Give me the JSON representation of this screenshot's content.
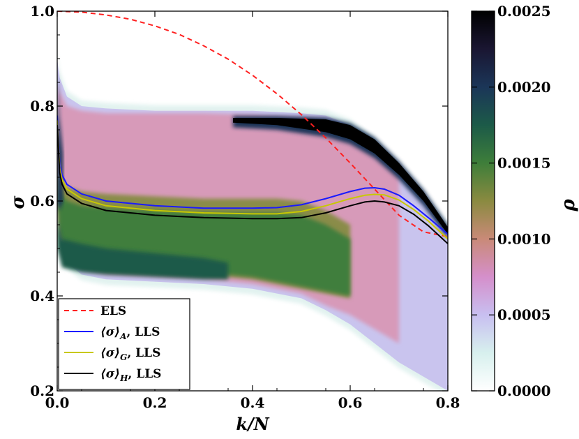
{
  "chart_data": {
    "type": "line",
    "title": "",
    "xlabel": "k/N",
    "ylabel": "σ",
    "xlim": [
      0.0,
      0.8
    ],
    "ylim": [
      0.2,
      1.0
    ],
    "xticks": [
      0.0,
      0.2,
      0.4,
      0.6,
      0.8
    ],
    "xtick_labels": [
      "0.0",
      "0.2",
      "0.4",
      "0.6",
      "0.8"
    ],
    "yticks": [
      0.2,
      0.4,
      0.6,
      0.8,
      1.0
    ],
    "ytick_labels": [
      "0.2",
      "0.4",
      "0.6",
      "0.8",
      "1.0"
    ],
    "legend_position": "bottom-left",
    "series": [
      {
        "name": "ELS",
        "legend_main": "ELS",
        "legend_sub": "",
        "legend_tail": "",
        "style": "dashed",
        "color": "#ff2020",
        "x": [
          0.0,
          0.05,
          0.1,
          0.15,
          0.2,
          0.25,
          0.3,
          0.35,
          0.4,
          0.45,
          0.5,
          0.55,
          0.6,
          0.65,
          0.7,
          0.75,
          0.8
        ],
        "y": [
          1.0,
          0.998,
          0.992,
          0.983,
          0.969,
          0.951,
          0.927,
          0.899,
          0.865,
          0.826,
          0.782,
          0.733,
          0.68,
          0.625,
          0.57,
          0.535,
          0.525
        ]
      },
      {
        "name": "⟨σ⟩A, LLS",
        "legend_main": "⟨σ⟩",
        "legend_sub": "A",
        "legend_tail": ", LLS",
        "style": "solid",
        "color": "#1a1aff",
        "x": [
          0.0,
          0.005,
          0.01,
          0.02,
          0.05,
          0.1,
          0.2,
          0.3,
          0.4,
          0.45,
          0.5,
          0.55,
          0.6,
          0.63,
          0.65,
          0.67,
          0.7,
          0.73,
          0.76,
          0.8
        ],
        "y": [
          0.78,
          0.68,
          0.655,
          0.635,
          0.615,
          0.6,
          0.59,
          0.585,
          0.585,
          0.586,
          0.592,
          0.605,
          0.62,
          0.627,
          0.628,
          0.625,
          0.612,
          0.59,
          0.565,
          0.53
        ]
      },
      {
        "name": "⟨σ⟩G, LLS",
        "legend_main": "⟨σ⟩",
        "legend_sub": "G",
        "legend_tail": ", LLS",
        "style": "solid",
        "color": "#c8c800",
        "x": [
          0.0,
          0.005,
          0.01,
          0.02,
          0.05,
          0.1,
          0.2,
          0.3,
          0.4,
          0.45,
          0.5,
          0.55,
          0.6,
          0.63,
          0.65,
          0.67,
          0.7,
          0.73,
          0.76,
          0.8
        ],
        "y": [
          0.77,
          0.67,
          0.645,
          0.625,
          0.605,
          0.59,
          0.58,
          0.575,
          0.573,
          0.573,
          0.578,
          0.59,
          0.605,
          0.612,
          0.614,
          0.613,
          0.602,
          0.582,
          0.558,
          0.52
        ]
      },
      {
        "name": "⟨σ⟩H, LLS",
        "legend_main": "⟨σ⟩",
        "legend_sub": "H",
        "legend_tail": ", LLS",
        "style": "solid",
        "color": "#000000",
        "x": [
          0.0,
          0.005,
          0.01,
          0.02,
          0.05,
          0.1,
          0.2,
          0.3,
          0.4,
          0.45,
          0.5,
          0.55,
          0.6,
          0.63,
          0.65,
          0.67,
          0.7,
          0.73,
          0.76,
          0.8
        ],
        "y": [
          0.76,
          0.66,
          0.635,
          0.615,
          0.595,
          0.58,
          0.57,
          0.565,
          0.563,
          0.563,
          0.565,
          0.575,
          0.59,
          0.598,
          0.6,
          0.598,
          0.59,
          0.572,
          0.548,
          0.51
        ]
      }
    ],
    "density": {
      "label": "ρ",
      "range": [
        0.0,
        0.0025
      ],
      "colorbar_ticks": [
        0.0,
        0.0005,
        0.001,
        0.0015,
        0.002,
        0.0025
      ],
      "colorbar_tick_labels": [
        "0.0000",
        "0.0005",
        "0.0010",
        "0.0015",
        "0.0020",
        "0.0025"
      ],
      "colormap": "cubehelix",
      "colormap_stops": [
        "#ffffff",
        "#d7f0ee",
        "#c8bff0",
        "#d58fcb",
        "#c98a78",
        "#8a8a40",
        "#3e7e3a",
        "#1c5a48",
        "#1b3658",
        "#1a1632",
        "#000000"
      ]
    }
  }
}
